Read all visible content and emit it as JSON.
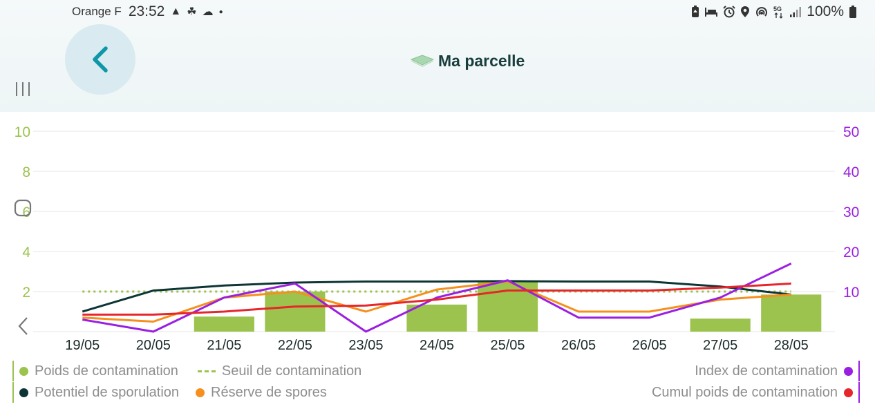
{
  "status_bar": {
    "carrier": "Orange F",
    "time": "23:52",
    "battery": "100%",
    "left_icons": [
      "navigation-icon",
      "seed-icon",
      "cloud-icon",
      "dot-icon"
    ],
    "right_icons": [
      "battery-saver-icon",
      "bed-icon",
      "alarm-icon",
      "location-icon",
      "hotspot-icon",
      "5g-icon",
      "signal-icon",
      "battery-icon"
    ]
  },
  "header": {
    "title": "Ma parcelle",
    "back_icon": "chevron-left-icon",
    "title_icon": "parcel-icon"
  },
  "chart_data": {
    "type": "bar+line",
    "categories": [
      "19/05",
      "20/05",
      "21/05",
      "22/05",
      "23/05",
      "24/05",
      "25/05",
      "26/05",
      "26/05",
      "27/05",
      "28/05"
    ],
    "y_left": {
      "ticks": [
        "2",
        "4",
        "6",
        "8",
        "10"
      ],
      "range": [
        0,
        10
      ],
      "color": "#9bc34e"
    },
    "y_right": {
      "ticks": [
        "10",
        "20",
        "30",
        "40",
        "50"
      ],
      "range": [
        0,
        50
      ],
      "color": "#9b1fe0"
    },
    "grid": true,
    "series": [
      {
        "name": "Poids de contamination",
        "kind": "bar",
        "axis": "left",
        "color": "#9bc34e",
        "values": [
          0,
          0,
          0.75,
          2.0,
          0,
          1.35,
          2.5,
          0,
          0,
          0.65,
          1.85
        ]
      },
      {
        "name": "Seuil de contamination",
        "kind": "dashed-line",
        "axis": "left",
        "color": "#9bc34e",
        "values": [
          2,
          2,
          2,
          2,
          2,
          2,
          2,
          2,
          2,
          2,
          2
        ]
      },
      {
        "name": "Potentiel de sporulation",
        "kind": "line",
        "axis": "left",
        "color": "#0d3535",
        "values": [
          1.0,
          2.05,
          2.3,
          2.45,
          2.5,
          2.5,
          2.52,
          2.5,
          2.5,
          2.25,
          1.85
        ]
      },
      {
        "name": "Réserve de spores",
        "kind": "line",
        "axis": "left",
        "color": "#f5901e",
        "values": [
          0.7,
          0.5,
          1.7,
          2.0,
          1.0,
          2.1,
          2.5,
          1.0,
          1.0,
          1.6,
          1.85
        ]
      },
      {
        "name": "Index de contamination",
        "kind": "line",
        "axis": "right",
        "color": "#9b1fe0",
        "values": [
          3.0,
          0,
          8.5,
          12.0,
          0,
          8.5,
          12.8,
          3.5,
          3.5,
          8.5,
          17.0
        ]
      },
      {
        "name": "Cumul poids de contamination",
        "kind": "line",
        "axis": "left",
        "color": "#e6262b",
        "values": [
          0.85,
          0.85,
          1.0,
          1.25,
          1.3,
          1.6,
          2.05,
          2.05,
          2.05,
          2.2,
          2.4
        ]
      }
    ]
  },
  "legend": {
    "left": [
      [
        {
          "label": "Poids de contamination",
          "color": "#9bc34e",
          "marker": "dot"
        },
        {
          "label": "Seuil de contamination",
          "color": "#9bc34e",
          "marker": "dash"
        }
      ],
      [
        {
          "label": "Potentiel de sporulation",
          "color": "#0d3535",
          "marker": "dot"
        },
        {
          "label": "Réserve de spores",
          "color": "#f5901e",
          "marker": "dot"
        }
      ]
    ],
    "right": [
      {
        "label": "Index de contamination",
        "color": "#9b1fe0",
        "marker": "dot"
      },
      {
        "label": "Cumul poids de contamination",
        "color": "#e6262b",
        "marker": "dot"
      }
    ]
  }
}
